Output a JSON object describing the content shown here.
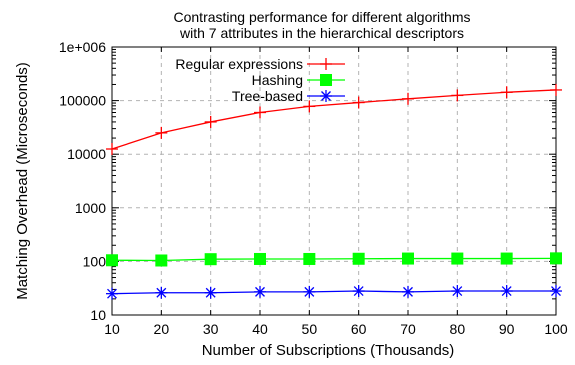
{
  "chart_data": {
    "type": "line",
    "title": "Contrasting performance for different algorithms",
    "subtitle": "with 7 attributes in the hierarchical descriptors",
    "xlabel": "Number of Subscriptions (Thousands)",
    "ylabel": "Matching Overhead (Microseconds)",
    "x": [
      10,
      20,
      30,
      40,
      50,
      60,
      70,
      80,
      90,
      100
    ],
    "xlim": [
      10,
      100
    ],
    "ylim": [
      10,
      1000000
    ],
    "yscale": "log",
    "x_ticks": [
      "10",
      "20",
      "30",
      "40",
      "50",
      "60",
      "70",
      "80",
      "90",
      "100"
    ],
    "y_ticks": [
      {
        "value": 10,
        "label": "10"
      },
      {
        "value": 100,
        "label": "100"
      },
      {
        "value": 1000,
        "label": "1000"
      },
      {
        "value": 10000,
        "label": "10000"
      },
      {
        "value": 100000,
        "label": "100000"
      },
      {
        "value": 1000000,
        "label": "1e+006"
      }
    ],
    "grid": true,
    "legend_position": "top-right",
    "series": [
      {
        "name": "Regular expressions",
        "color": "#ff0000",
        "marker": "plus",
        "values": [
          12500,
          25000,
          40000,
          60000,
          78000,
          92000,
          108000,
          125000,
          143000,
          158000
        ]
      },
      {
        "name": "Hashing",
        "color": "#00ff00",
        "marker": "square",
        "values": [
          105,
          104,
          110,
          111,
          111,
          112,
          113,
          113,
          113,
          114
        ]
      },
      {
        "name": "Tree-based",
        "color": "#0000ff",
        "marker": "star",
        "values": [
          25,
          26,
          26,
          27,
          27,
          28,
          27,
          28,
          28,
          28
        ]
      }
    ]
  }
}
